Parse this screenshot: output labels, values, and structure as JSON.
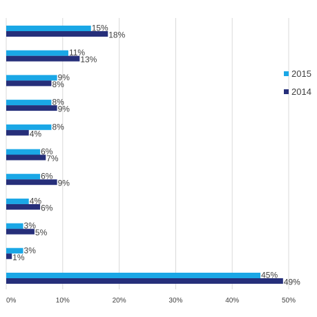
{
  "chart_data": {
    "type": "bar",
    "orientation": "horizontal",
    "categories": [
      "",
      "",
      "",
      "",
      "",
      "",
      "",
      "",
      "",
      "",
      ""
    ],
    "series": [
      {
        "name": "2015",
        "color": "#1aa7e6",
        "values": [
          15,
          11,
          9,
          8,
          8,
          6,
          6,
          4,
          3,
          3,
          45
        ]
      },
      {
        "name": "2014",
        "color": "#262f7a",
        "values": [
          18,
          13,
          8,
          9,
          4,
          7,
          9,
          6,
          5,
          1,
          49
        ]
      }
    ],
    "xlim": [
      0,
      50
    ],
    "xticks": [
      "0%",
      "10%",
      "20%",
      "30%",
      "40%",
      "50%"
    ],
    "grid": true,
    "legend_position": "right",
    "title": "",
    "xlabel": "",
    "ylabel": ""
  }
}
